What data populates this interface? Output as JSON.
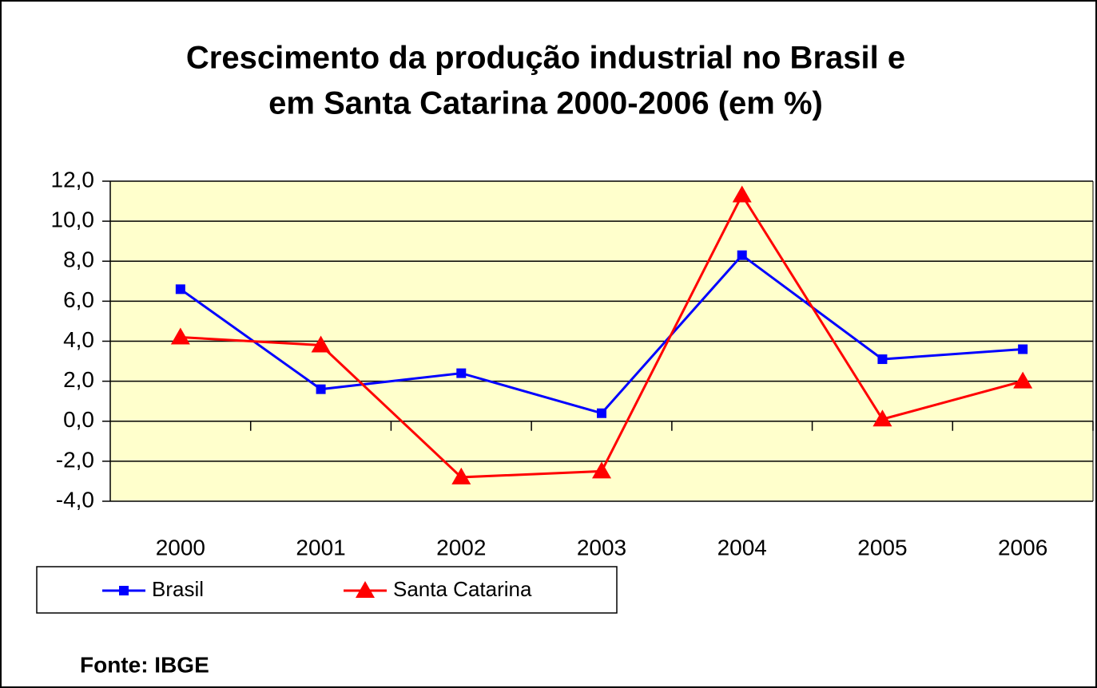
{
  "chart_data": {
    "type": "line",
    "title": [
      "Crescimento da produção industrial no Brasil e",
      "em Santa Catarina 2000-2006 (em %)"
    ],
    "categories": [
      "2000",
      "2001",
      "2002",
      "2003",
      "2004",
      "2005",
      "2006"
    ],
    "series": [
      {
        "name": "Brasil",
        "color": "#0000ff",
        "marker": "square",
        "values": [
          6.6,
          1.6,
          2.4,
          0.4,
          8.3,
          3.1,
          3.6
        ]
      },
      {
        "name": "Santa Catarina",
        "color": "#ff0000",
        "marker": "triangle",
        "values": [
          4.2,
          3.8,
          -2.8,
          -2.5,
          11.3,
          0.1,
          2.0
        ]
      }
    ],
    "ylim": [
      -4,
      12
    ],
    "yticks": [
      {
        "value": -4,
        "label": "-4,0"
      },
      {
        "value": -2,
        "label": "-2,0"
      },
      {
        "value": 0,
        "label": "0,0"
      },
      {
        "value": 2,
        "label": "2,0"
      },
      {
        "value": 4,
        "label": "4,0"
      },
      {
        "value": 6,
        "label": "6,0"
      },
      {
        "value": 8,
        "label": "8,0"
      },
      {
        "value": 10,
        "label": "10,0"
      },
      {
        "value": 12,
        "label": "12,0"
      }
    ],
    "grid": true,
    "plot_background": "#ffffcc",
    "legend": "bottom-left",
    "source": "Fonte: IBGE"
  }
}
